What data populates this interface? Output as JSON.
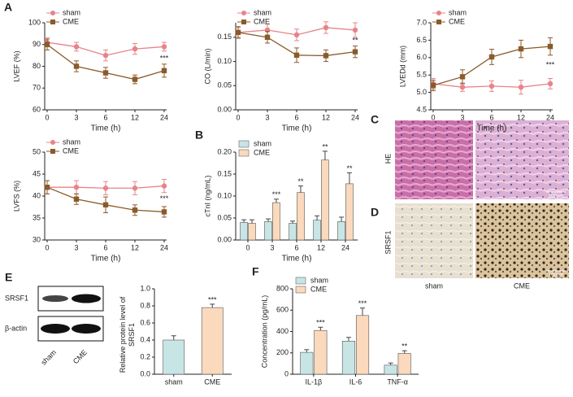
{
  "chart_data": [
    {
      "type": "line",
      "panel_label": "A",
      "ylabel": "LVEF (%)",
      "xlabel": "Time (h)",
      "categories": [
        "0",
        "3",
        "6",
        "12",
        "24"
      ],
      "ylim": [
        60,
        100
      ],
      "yticks": [
        60,
        70,
        80,
        90,
        100
      ],
      "annotation": "***",
      "series": [
        {
          "name": "sham",
          "color": "#e8838a",
          "marker": "circle",
          "values": [
            91,
            89,
            85,
            88,
            89
          ],
          "errors": [
            2,
            2,
            2.5,
            2.5,
            2
          ]
        },
        {
          "name": "CME",
          "color": "#8b5a2b",
          "marker": "square",
          "values": [
            90,
            80,
            77,
            74,
            78
          ],
          "errors": [
            2.5,
            2.5,
            2.5,
            2,
            3
          ]
        }
      ]
    },
    {
      "type": "line",
      "ylabel": "CO (L/min)",
      "xlabel": "Time (h)",
      "categories": [
        "0",
        "3",
        "6",
        "12",
        "24"
      ],
      "ylim": [
        0,
        0.18
      ],
      "yticks": [
        {
          "value": 0,
          "label": "0.00"
        },
        0.05,
        {
          "value": 0.1,
          "label": "0.10"
        },
        0.15
      ],
      "annotation": "**",
      "series": [
        {
          "name": "sham",
          "color": "#e8838a",
          "marker": "circle",
          "values": [
            0.16,
            0.165,
            0.155,
            0.17,
            0.165
          ],
          "errors": [
            0.01,
            0.012,
            0.012,
            0.012,
            0.015
          ]
        },
        {
          "name": "CME",
          "color": "#8b5a2b",
          "marker": "square",
          "values": [
            0.16,
            0.15,
            0.113,
            0.112,
            0.12
          ],
          "errors": [
            0.012,
            0.012,
            0.015,
            0.012,
            0.012
          ]
        }
      ]
    },
    {
      "type": "line",
      "ylabel": "LVEDd (mm)",
      "xlabel": "Time (h)",
      "categories": [
        "0",
        "3",
        "6",
        "12",
        "24"
      ],
      "ylim": [
        4.5,
        7.0
      ],
      "yticks": [
        4.5,
        {
          "value": 5,
          "label": "5.0"
        },
        5.5,
        {
          "value": 6,
          "label": "6.0"
        },
        6.5,
        {
          "value": 7,
          "label": "7.0"
        }
      ],
      "annotation": "***",
      "series": [
        {
          "name": "sham",
          "color": "#e8838a",
          "marker": "circle",
          "values": [
            5.25,
            5.15,
            5.18,
            5.15,
            5.25
          ],
          "errors": [
            0.15,
            0.12,
            0.15,
            0.2,
            0.15
          ]
        },
        {
          "name": "CME",
          "color": "#8b5a2b",
          "marker": "square",
          "values": [
            5.2,
            5.45,
            6.02,
            6.25,
            6.32
          ],
          "errors": [
            0.15,
            0.2,
            0.22,
            0.25,
            0.25
          ]
        }
      ]
    },
    {
      "type": "line",
      "ylabel": "LVFS (%)",
      "xlabel": "Time (h)",
      "categories": [
        "0",
        "3",
        "6",
        "12",
        "24"
      ],
      "ylim": [
        30,
        50
      ],
      "yticks": [
        30,
        35,
        40,
        45,
        50
      ],
      "annotation": "***",
      "series": [
        {
          "name": "sham",
          "color": "#e8838a",
          "marker": "circle",
          "values": [
            42,
            42,
            41.8,
            41.8,
            42.3
          ],
          "errors": [
            1.5,
            1.5,
            1.5,
            1.5,
            1.5
          ]
        },
        {
          "name": "CME",
          "color": "#8b5a2b",
          "marker": "square",
          "values": [
            42,
            39.3,
            38,
            36.8,
            36.4
          ],
          "errors": [
            1.5,
            1.2,
            1.8,
            1.2,
            1.2
          ]
        }
      ]
    },
    {
      "type": "bar",
      "panel_label": "B",
      "ylabel": "cTnI (ng/mL)",
      "xlabel": "Time (h)",
      "categories": [
        "0",
        "3",
        "6",
        "12",
        "24"
      ],
      "ylim": [
        0,
        0.2
      ],
      "yticks": [
        {
          "value": 0,
          "label": "0.00"
        },
        0.05,
        {
          "value": 0.1,
          "label": "0.10"
        },
        0.15,
        {
          "value": 0.2,
          "label": "0.20"
        }
      ],
      "annotations": [
        null,
        "***",
        "**",
        "**",
        "**"
      ],
      "series": [
        {
          "name": "sham",
          "color": "#c8e5e6",
          "values": [
            0.04,
            0.042,
            0.038,
            0.045,
            0.042
          ],
          "errors": [
            0.006,
            0.006,
            0.005,
            0.01,
            0.01
          ]
        },
        {
          "name": "CME",
          "color": "#fbd9bd",
          "values": [
            0.038,
            0.085,
            0.108,
            0.182,
            0.128
          ],
          "errors": [
            0.008,
            0.008,
            0.015,
            0.02,
            0.025
          ]
        }
      ]
    },
    {
      "type": "bar",
      "ylabel": "Relative protein level of SRSF1",
      "categories": [
        "sham",
        "CME"
      ],
      "ylim": [
        0,
        1.0
      ],
      "yticks": [
        {
          "value": 0,
          "label": "0.0"
        },
        0.2,
        0.4,
        0.6,
        0.8,
        {
          "value": 1,
          "label": "1.0"
        }
      ],
      "annotations": [
        null,
        "***"
      ],
      "series": [
        {
          "colors": [
            "#c8e5e6",
            "#fbd9bd"
          ],
          "values": [
            0.4,
            0.78
          ],
          "errors": [
            0.05,
            0.04
          ]
        }
      ]
    },
    {
      "type": "bar",
      "panel_label": "F",
      "ylabel": "Concentration (pg/mL)",
      "categories": [
        "IL-1β",
        "IL-6",
        "TNF-α"
      ],
      "ylim": [
        0,
        800
      ],
      "yticks": [
        0,
        200,
        400,
        600,
        800
      ],
      "annotations": [
        "***",
        "***",
        "**"
      ],
      "series": [
        {
          "name": "sham",
          "color": "#c8e5e6",
          "values": [
            205,
            310,
            85
          ],
          "errors": [
            25,
            35,
            20
          ]
        },
        {
          "name": "CME",
          "color": "#fbd9bd",
          "values": [
            410,
            550,
            195
          ],
          "errors": [
            30,
            70,
            25
          ]
        }
      ]
    }
  ],
  "images": {
    "panel_labels": [
      "C",
      "D"
    ],
    "row_labels": [
      "HE",
      "SRSF1"
    ],
    "column_labels": [
      "sham",
      "CME"
    ],
    "scale_bars": [
      "100μm",
      "100μm"
    ]
  },
  "blot": {
    "panel_label": "E",
    "bands": [
      "SRSF1",
      "β-actin"
    ],
    "lanes": [
      "sham",
      "CME"
    ]
  }
}
